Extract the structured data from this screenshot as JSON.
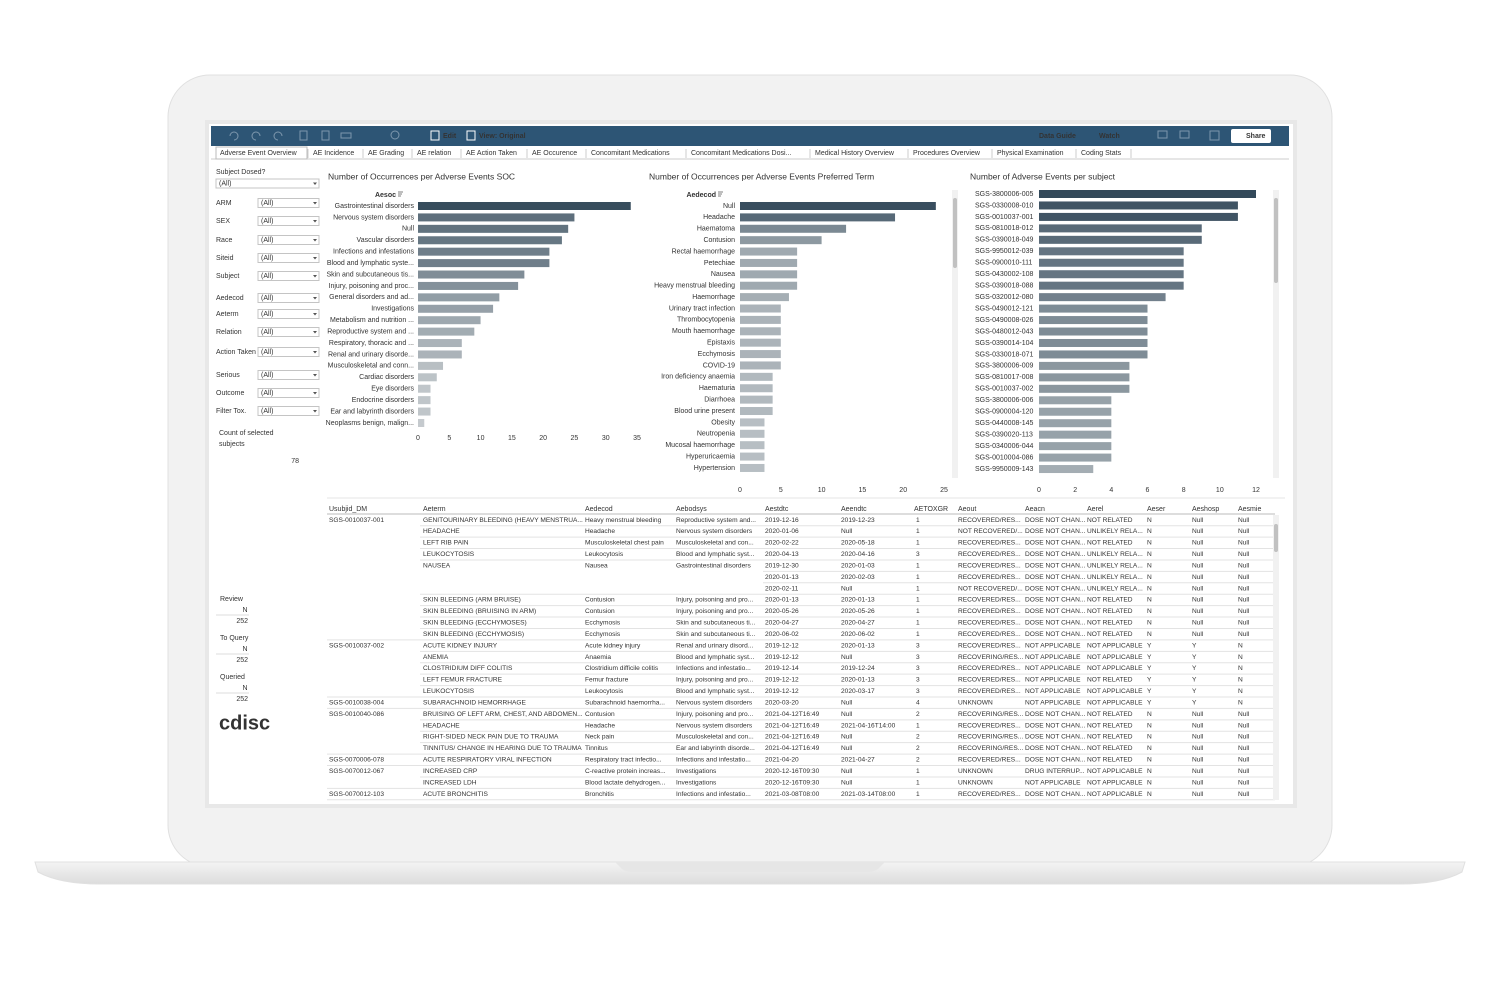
{
  "toolbar": {
    "items": [
      "Edit",
      "View: Original",
      "Data Guide",
      "Watch",
      "Share"
    ]
  },
  "tabs": [
    "Adverse Event Overview",
    "AE Incidence",
    "AE Grading",
    "AE relation",
    "AE Action Taken",
    "AE Occurence",
    "Concomitant Medications",
    "Concomitant Medications Dosi...",
    "Medical History Overview",
    "Procedures Overview",
    "Physical Examination",
    "Coding Stats"
  ],
  "selected_tab": 0,
  "filters": [
    {
      "label": "Subject Dosed?",
      "value": "(All)"
    },
    {
      "label": "ARM",
      "value": "(All)"
    },
    {
      "label": "SEX",
      "value": "(All)"
    },
    {
      "label": "Race",
      "value": "(All)"
    },
    {
      "label": "Siteid",
      "value": "(All)"
    },
    {
      "label": "Subject",
      "value": "(All)"
    },
    {
      "label": "Aedecod",
      "value": "(All)"
    },
    {
      "label": "Aeterm",
      "value": "(All)"
    },
    {
      "label": "Relation",
      "value": "(All)"
    },
    {
      "label": "Action Taken",
      "value": "(All)"
    },
    {
      "label": "Serious",
      "value": "(All)"
    },
    {
      "label": "Outcome",
      "value": "(All)"
    },
    {
      "label": "Filter Tox.",
      "value": "(All)"
    }
  ],
  "subject_count": {
    "label": [
      "Count of selected",
      "subjects"
    ],
    "value": 78
  },
  "review_status": [
    {
      "label": "Review",
      "flag": "N",
      "count": 252
    },
    {
      "label": "To Query",
      "flag": "N",
      "count": 252
    },
    {
      "label": "Queried",
      "flag": "N",
      "count": 252
    }
  ],
  "logo": "cdisc",
  "chart_data": [
    {
      "type": "bar",
      "title": "Number of Occurrences per Adverse Events SOC",
      "axis_label": "Aesoc",
      "categories": [
        "Gastrointestinal disorders",
        "Nervous system disorders",
        "Null",
        "Vascular disorders",
        "Infections and infestations",
        "Blood and lymphatic syste...",
        "Skin and subcutaneous tis...",
        "Injury, poisoning and proc...",
        "General disorders and ad...",
        "Investigations",
        "Metabolism and nutrition ...",
        "Reproductive system and ...",
        "Respiratory, thoracic and ...",
        "Renal and urinary disorde...",
        "Musculoskeletal and conn...",
        "Cardiac disorders",
        "Eye disorders",
        "Endocrine disorders",
        "Ear and labyrinth disorders",
        "Neoplasms benign, malign..."
      ],
      "values": [
        34,
        25,
        24,
        23,
        21,
        21,
        17,
        16,
        13,
        12,
        10,
        9,
        7,
        7,
        4,
        3,
        2,
        2,
        2,
        1
      ],
      "xlim": [
        0,
        35
      ],
      "xticks": [
        0,
        5,
        10,
        15,
        20,
        25,
        30,
        35
      ],
      "color_range": [
        "#c9ced1",
        "#33495a"
      ]
    },
    {
      "type": "bar",
      "title": "Number of Occurrences per Adverse Events Preferred Term",
      "axis_label": "Aedecod",
      "categories": [
        "Null",
        "Headache",
        "Haematoma",
        "Contusion",
        "Rectal haemorrhage",
        "Petechiae",
        "Nausea",
        "Heavy menstrual bleeding",
        "Haemorrhage",
        "Urinary tract infection",
        "Thrombocytopenia",
        "Mouth haemorrhage",
        "Epistaxis",
        "Ecchymosis",
        "COVID-19",
        "Iron deficiency anaemia",
        "Haematuria",
        "Diarrhoea",
        "Blood urine present",
        "Obesity",
        "Neutropenia",
        "Mucosal haemorrhage",
        "Hyperuricaemia",
        "Hypertension"
      ],
      "values": [
        24,
        19,
        13,
        10,
        7,
        7,
        7,
        7,
        6,
        5,
        5,
        5,
        5,
        5,
        5,
        4,
        4,
        4,
        4,
        3,
        3,
        3,
        3,
        3
      ],
      "xlim": [
        0,
        25
      ],
      "xticks": [
        0,
        5,
        10,
        15,
        20,
        25
      ],
      "color_range": [
        "#c9ced1",
        "#33495a"
      ]
    },
    {
      "type": "bar",
      "title": "Number of Adverse Events per subject",
      "categories": [
        "SGS-3800006-005",
        "SGS-0330008-010",
        "SGS-0010037-001",
        "SGS-0810018-012",
        "SGS-0390018-049",
        "SGS-9950012-039",
        "SGS-0900010-111",
        "SGS-0430002-108",
        "SGS-0390018-088",
        "SGS-0320012-080",
        "SGS-0490012-121",
        "SGS-0490008-026",
        "SGS-0480012-043",
        "SGS-0390014-104",
        "SGS-0330018-071",
        "SGS-3800006-009",
        "SGS-0810017-008",
        "SGS-0010037-002",
        "SGS-3800006-006",
        "SGS-0900004-120",
        "SGS-0440008-145",
        "SGS-0390020-113",
        "SGS-0340006-044",
        "SGS-0010004-086",
        "SGS-9950009-143"
      ],
      "values": [
        12,
        11,
        11,
        9,
        9,
        8,
        8,
        8,
        8,
        7,
        6,
        6,
        6,
        6,
        6,
        5,
        5,
        5,
        4,
        4,
        4,
        4,
        4,
        4,
        3
      ],
      "xlim": [
        0,
        12
      ],
      "xticks": [
        0,
        2,
        4,
        6,
        8,
        10,
        12
      ],
      "color_range": [
        "#c9ced1",
        "#33495a"
      ]
    }
  ],
  "table": {
    "columns": [
      "Usubjid_DM",
      "Aeterm",
      "Aedecod",
      "Aebodsys",
      "Aestdtc",
      "Aeendtc",
      "AETOXGR",
      "Aeout",
      "Aeacn",
      "Aerel",
      "Aeser",
      "Aeshosp",
      "Aesmie"
    ],
    "rows": [
      [
        "SGS-0010037-001",
        "GENITOURINARY BLEEDING (HEAVY MENSTRUA...",
        "Heavy menstrual bleeding",
        "Reproductive system and...",
        "2019-12-16",
        "2019-12-23",
        1,
        "RECOVERED/RES...",
        "DOSE NOT CHAN...",
        "NOT RELATED",
        "N",
        "Null",
        "Null"
      ],
      [
        null,
        "HEADACHE",
        "Headache",
        "Nervous system disorders",
        "2020-01-06",
        "Null",
        1,
        "NOT RECOVERED/...",
        "DOSE NOT CHAN...",
        "UNLIKELY RELA...",
        "N",
        "Null",
        "Null"
      ],
      [
        null,
        "LEFT RIB PAIN",
        "Musculoskeletal chest pain",
        "Musculoskeletal and con...",
        "2020-02-22",
        "2020-05-18",
        1,
        "RECOVERED/RES...",
        "DOSE NOT CHAN...",
        "NOT RELATED",
        "N",
        "Null",
        "Null"
      ],
      [
        null,
        "LEUKOCYTOSIS",
        "Leukocytosis",
        "Blood and lymphatic syst...",
        "2020-04-13",
        "2020-04-16",
        3,
        "RECOVERED/RES...",
        "DOSE NOT CHAN...",
        "UNLIKELY RELA...",
        "N",
        "Null",
        "Null"
      ],
      [
        null,
        "NAUSEA",
        "Nausea",
        "Gastrointestinal disorders",
        "2019-12-30",
        "2020-01-03",
        1,
        "RECOVERED/RES...",
        "DOSE NOT CHAN...",
        "UNLIKELY RELA...",
        "N",
        "Null",
        "Null"
      ],
      [
        null,
        null,
        null,
        null,
        "2020-01-13",
        "2020-02-03",
        1,
        "RECOVERED/RES...",
        "DOSE NOT CHAN...",
        "UNLIKELY RELA...",
        "N",
        "Null",
        "Null"
      ],
      [
        null,
        null,
        null,
        null,
        "2020-02-11",
        "Null",
        1,
        "NOT RECOVERED/...",
        "DOSE NOT CHAN...",
        "UNLIKELY RELA...",
        "N",
        "Null",
        "Null"
      ],
      [
        null,
        "SKIN BLEEDING (ARM BRUISE)",
        "Contusion",
        "Injury, poisoning and pro...",
        "2020-01-13",
        "2020-01-13",
        1,
        "RECOVERED/RES...",
        "DOSE NOT CHAN...",
        "NOT RELATED",
        "N",
        "Null",
        "Null"
      ],
      [
        null,
        "SKIN BLEEDING (BRUISING IN ARM)",
        "Contusion",
        "Injury, poisoning and pro...",
        "2020-05-26",
        "2020-05-26",
        1,
        "RECOVERED/RES...",
        "DOSE NOT CHAN...",
        "NOT RELATED",
        "N",
        "Null",
        "Null"
      ],
      [
        null,
        "SKIN BLEEDING (ECCHYMOSES)",
        "Ecchymosis",
        "Skin and subcutaneous ti...",
        "2020-04-27",
        "2020-04-27",
        1,
        "RECOVERED/RES...",
        "DOSE NOT CHAN...",
        "NOT RELATED",
        "N",
        "Null",
        "Null"
      ],
      [
        null,
        "SKIN BLEEDING (ECCHYMOSIS)",
        "Ecchymosis",
        "Skin and subcutaneous ti...",
        "2020-06-02",
        "2020-06-02",
        1,
        "RECOVERED/RES...",
        "DOSE NOT CHAN...",
        "NOT RELATED",
        "N",
        "Null",
        "Null"
      ],
      [
        "SGS-0010037-002",
        "ACUTE KIDNEY INJURY",
        "Acute kidney injury",
        "Renal and urinary disord...",
        "2019-12-12",
        "2020-01-13",
        3,
        "RECOVERED/RES...",
        "NOT APPLICABLE",
        "NOT APPLICABLE",
        "Y",
        "Y",
        "N"
      ],
      [
        null,
        "ANEMIA",
        "Anaemia",
        "Blood and lymphatic syst...",
        "2019-12-12",
        "Null",
        3,
        "RECOVERING/RES...",
        "NOT APPLICABLE",
        "NOT APPLICABLE",
        "Y",
        "Y",
        "N"
      ],
      [
        null,
        "CLOSTRIDIUM DIFF COLITIS",
        "Clostridium difficile colitis",
        "Infections and infestatio...",
        "2019-12-14",
        "2019-12-24",
        3,
        "RECOVERED/RES...",
        "NOT APPLICABLE",
        "NOT APPLICABLE",
        "Y",
        "Y",
        "N"
      ],
      [
        null,
        "LEFT FEMUR FRACTURE",
        "Femur fracture",
        "Injury, poisoning and pro...",
        "2019-12-12",
        "2020-01-13",
        3,
        "RECOVERED/RES...",
        "NOT APPLICABLE",
        "NOT RELATED",
        "Y",
        "Y",
        "N"
      ],
      [
        null,
        "LEUKOCYTOSIS",
        "Leukocytosis",
        "Blood and lymphatic syst...",
        "2019-12-12",
        "2020-03-17",
        3,
        "RECOVERED/RES...",
        "NOT APPLICABLE",
        "NOT APPLICABLE",
        "Y",
        "Y",
        "N"
      ],
      [
        "SGS-0010038-004",
        "SUBARACHNOID HEMORRHAGE",
        "Subarachnoid haemorrha...",
        "Nervous system disorders",
        "2020-03-20",
        "Null",
        4,
        "UNKNOWN",
        "NOT APPLICABLE",
        "NOT APPLICABLE",
        "Y",
        "Y",
        "N"
      ],
      [
        "SGS-0010040-086",
        "BRUISING OF LEFT ARM, CHEST, AND ABDOMEN...",
        "Contusion",
        "Injury, poisoning and pro...",
        "2021-04-12T16:49",
        "Null",
        2,
        "RECOVERING/RES...",
        "DOSE NOT CHAN...",
        "NOT RELATED",
        "N",
        "Null",
        "Null"
      ],
      [
        null,
        "HEADACHE",
        "Headache",
        "Nervous system disorders",
        "2021-04-12T16:49",
        "2021-04-16T14:00",
        1,
        "RECOVERED/RES...",
        "DOSE NOT CHAN...",
        "NOT RELATED",
        "N",
        "Null",
        "Null"
      ],
      [
        null,
        "RIGHT-SIDED NECK PAIN DUE TO TRAUMA",
        "Neck pain",
        "Musculoskeletal and con...",
        "2021-04-12T16:49",
        "Null",
        2,
        "RECOVERING/RES...",
        "DOSE NOT CHAN...",
        "NOT RELATED",
        "N",
        "Null",
        "Null"
      ],
      [
        null,
        "TINNITUS/ CHANGE IN HEARING DUE TO TRAUMA",
        "Tinnitus",
        "Ear and labyrinth disorde...",
        "2021-04-12T16:49",
        "Null",
        2,
        "RECOVERING/RES...",
        "DOSE NOT CHAN...",
        "NOT RELATED",
        "N",
        "Null",
        "Null"
      ],
      [
        "SGS-0070006-078",
        "ACUTE RESPIRATORY VIRAL INFECTION",
        "Respiratory tract infectio...",
        "Infections and infestatio...",
        "2021-04-20",
        "2021-04-27",
        2,
        "RECOVERED/RES...",
        "DOSE NOT CHAN...",
        "NOT RELATED",
        "N",
        "Null",
        "Null"
      ],
      [
        "SGS-0070012-067",
        "INCREASED CRP",
        "C-reactive protein increas...",
        "Investigations",
        "2020-12-16T09:30",
        "Null",
        1,
        "UNKNOWN",
        "DRUG INTERRUP...",
        "NOT APPLICABLE",
        "N",
        "Null",
        "Null"
      ],
      [
        null,
        "INCREASED LDH",
        "Blood lactate dehydrogen...",
        "Investigations",
        "2020-12-16T09:30",
        "Null",
        1,
        "UNKNOWN",
        "NOT APPLICABLE",
        "NOT APPLICABLE",
        "N",
        "Null",
        "Null"
      ],
      [
        "SGS-0070012-103",
        "ACUTE BRONCHITIS",
        "Bronchitis",
        "Infections and infestatio...",
        "2021-03-08T08:00",
        "2021-03-14T08:00",
        1,
        "RECOVERED/RES...",
        "DOSE NOT CHAN...",
        "NOT APPLICABLE",
        "N",
        "Null",
        "Null"
      ]
    ]
  }
}
